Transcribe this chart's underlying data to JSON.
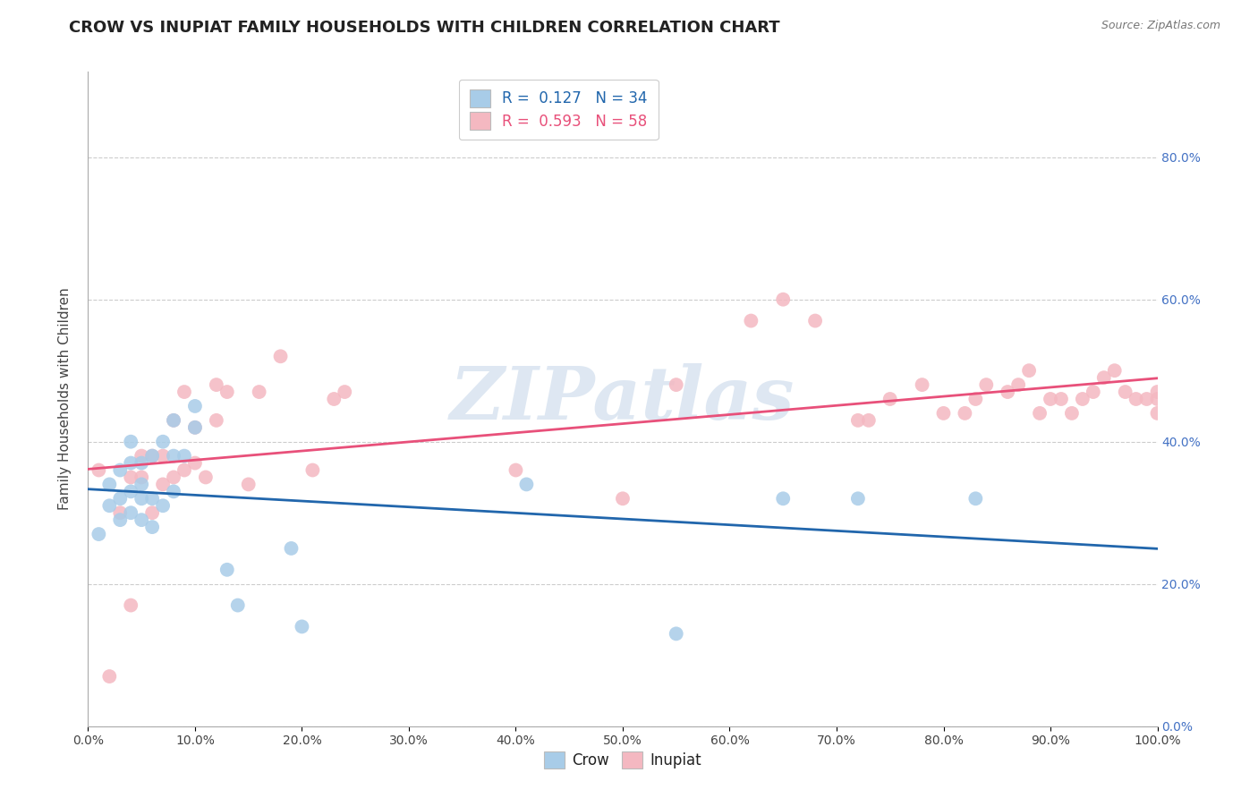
{
  "title": "CROW VS INUPIAT FAMILY HOUSEHOLDS WITH CHILDREN CORRELATION CHART",
  "source": "Source: ZipAtlas.com",
  "ylabel": "Family Households with Children",
  "xlim": [
    0,
    1.0
  ],
  "ylim": [
    0,
    0.92
  ],
  "xticks": [
    0.0,
    0.1,
    0.2,
    0.3,
    0.4,
    0.5,
    0.6,
    0.7,
    0.8,
    0.9,
    1.0
  ],
  "xticklabels": [
    "0.0%",
    "10.0%",
    "20.0%",
    "30.0%",
    "40.0%",
    "50.0%",
    "60.0%",
    "70.0%",
    "80.0%",
    "90.0%",
    "100.0%"
  ],
  "yticks": [
    0.0,
    0.2,
    0.4,
    0.6,
    0.8
  ],
  "yticklabels": [
    "0.0%",
    "20.0%",
    "40.0%",
    "60.0%",
    "80.0%"
  ],
  "crow_color": "#a8cce8",
  "inupiat_color": "#f4b8c1",
  "crow_line_color": "#2166ac",
  "inupiat_line_color": "#e8507a",
  "crow_R": 0.127,
  "crow_N": 34,
  "inupiat_R": 0.593,
  "inupiat_N": 58,
  "crow_scatter_x": [
    0.01,
    0.02,
    0.02,
    0.03,
    0.03,
    0.03,
    0.04,
    0.04,
    0.04,
    0.04,
    0.05,
    0.05,
    0.05,
    0.05,
    0.06,
    0.06,
    0.06,
    0.07,
    0.07,
    0.08,
    0.08,
    0.08,
    0.09,
    0.1,
    0.1,
    0.13,
    0.14,
    0.19,
    0.2,
    0.41,
    0.55,
    0.65,
    0.72,
    0.83
  ],
  "crow_scatter_y": [
    0.27,
    0.31,
    0.34,
    0.29,
    0.32,
    0.36,
    0.3,
    0.33,
    0.37,
    0.4,
    0.29,
    0.32,
    0.34,
    0.37,
    0.28,
    0.32,
    0.38,
    0.31,
    0.4,
    0.33,
    0.38,
    0.43,
    0.38,
    0.42,
    0.45,
    0.22,
    0.17,
    0.25,
    0.14,
    0.34,
    0.13,
    0.32,
    0.32,
    0.32
  ],
  "inupiat_scatter_x": [
    0.01,
    0.02,
    0.03,
    0.04,
    0.04,
    0.05,
    0.05,
    0.06,
    0.06,
    0.07,
    0.07,
    0.08,
    0.08,
    0.09,
    0.09,
    0.1,
    0.1,
    0.11,
    0.12,
    0.12,
    0.13,
    0.15,
    0.16,
    0.18,
    0.21,
    0.23,
    0.24,
    0.4,
    0.5,
    0.55,
    0.62,
    0.65,
    0.68,
    0.72,
    0.73,
    0.75,
    0.78,
    0.8,
    0.82,
    0.83,
    0.84,
    0.86,
    0.87,
    0.88,
    0.89,
    0.9,
    0.91,
    0.92,
    0.93,
    0.94,
    0.95,
    0.96,
    0.97,
    0.98,
    0.99,
    1.0,
    1.0,
    1.0
  ],
  "inupiat_scatter_y": [
    0.36,
    0.07,
    0.3,
    0.35,
    0.17,
    0.35,
    0.38,
    0.3,
    0.38,
    0.34,
    0.38,
    0.35,
    0.43,
    0.36,
    0.47,
    0.37,
    0.42,
    0.35,
    0.43,
    0.48,
    0.47,
    0.34,
    0.47,
    0.52,
    0.36,
    0.46,
    0.47,
    0.36,
    0.32,
    0.48,
    0.57,
    0.6,
    0.57,
    0.43,
    0.43,
    0.46,
    0.48,
    0.44,
    0.44,
    0.46,
    0.48,
    0.47,
    0.48,
    0.5,
    0.44,
    0.46,
    0.46,
    0.44,
    0.46,
    0.47,
    0.49,
    0.5,
    0.47,
    0.46,
    0.46,
    0.44,
    0.46,
    0.47
  ],
  "watermark": "ZIPatlas",
  "background_color": "#ffffff",
  "grid_color": "#cccccc",
  "title_fontsize": 13,
  "label_fontsize": 11,
  "tick_fontsize": 10,
  "legend_fontsize": 12,
  "source_fontsize": 9
}
